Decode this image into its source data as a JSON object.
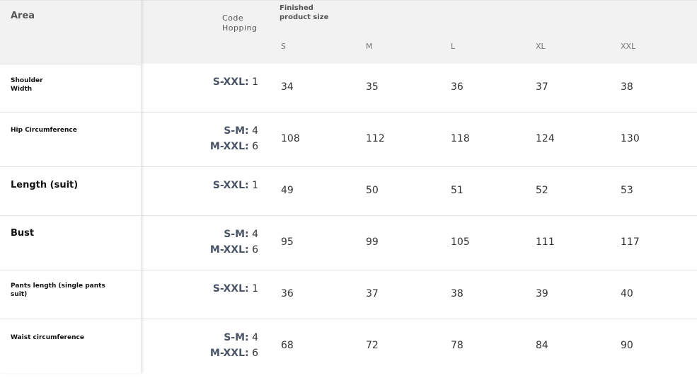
{
  "header": {
    "area": "Area",
    "code_hopping": [
      "Code",
      "Hopping"
    ],
    "finished_product_size": [
      "Finished",
      "product size"
    ],
    "sizes": [
      "S",
      "M",
      "L",
      "XL",
      "XXL"
    ]
  },
  "rows": [
    {
      "label": [
        "Shoulder",
        "Width"
      ],
      "label_style": "small",
      "code": [
        {
          "key": "S-XXL:",
          "val": "1"
        }
      ],
      "values": [
        "34",
        "35",
        "36",
        "37",
        "38"
      ]
    },
    {
      "label": [
        "Hip Circumference"
      ],
      "label_style": "small",
      "code": [
        {
          "key": "S-M:",
          "val": "4"
        },
        {
          "key": "M-XXL:",
          "val": "6"
        }
      ],
      "values": [
        "108",
        "112",
        "118",
        "124",
        "130"
      ]
    },
    {
      "label": [
        "Length (suit)"
      ],
      "label_style": "big",
      "code": [
        {
          "key": "S-XXL:",
          "val": "1"
        }
      ],
      "values": [
        "49",
        "50",
        "51",
        "52",
        "53"
      ]
    },
    {
      "label": [
        "Bust"
      ],
      "label_style": "big",
      "code": [
        {
          "key": "S-M:",
          "val": "4"
        },
        {
          "key": "M-XXL:",
          "val": "6"
        }
      ],
      "values": [
        "95",
        "99",
        "105",
        "111",
        "117"
      ]
    },
    {
      "label": [
        "Pants length (single pants",
        "suit)"
      ],
      "label_style": "small",
      "code": [
        {
          "key": "S-XXL:",
          "val": "1"
        }
      ],
      "values": [
        "36",
        "37",
        "38",
        "39",
        "40"
      ]
    },
    {
      "label": [
        "Waist circumference"
      ],
      "label_style": "small",
      "code": [
        {
          "key": "S-M:",
          "val": "4"
        },
        {
          "key": "M-XXL:",
          "val": "6"
        }
      ],
      "values": [
        "68",
        "72",
        "78",
        "84",
        "90"
      ]
    }
  ]
}
